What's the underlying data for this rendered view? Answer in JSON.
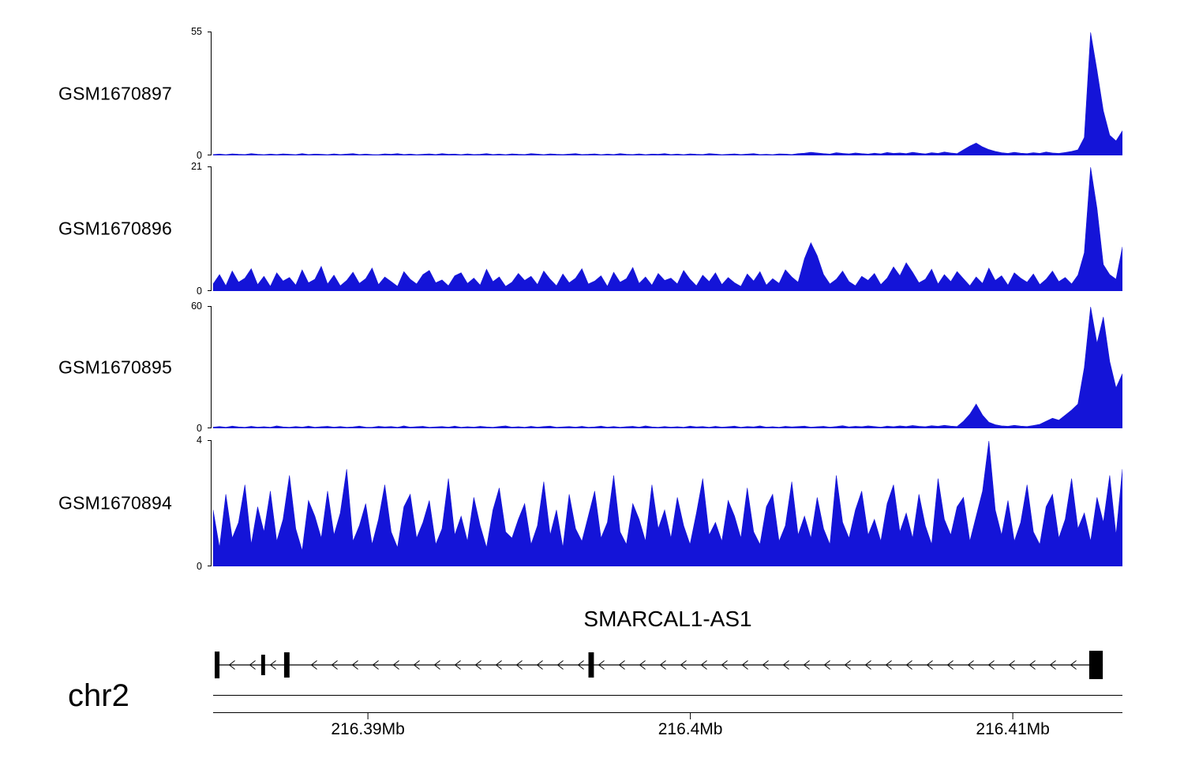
{
  "chart_data": {
    "type": "area",
    "kind": "genome-coverage-tracks",
    "title": "",
    "region": {
      "chrom": "chr2",
      "start_mb": 216.3852,
      "end_mb": 216.4134,
      "unit": "Mb"
    },
    "axis": {
      "chrom_label": "chr2",
      "ticks_mb": [
        216.39,
        216.4,
        216.41
      ],
      "tick_labels": [
        "216.39Mb",
        "216.4Mb",
        "216.41Mb"
      ]
    },
    "gene": {
      "name": "SMARCAL1-AS1",
      "strand": "-",
      "line_start_mb": 216.38525,
      "line_end_mb": 216.41279,
      "exons_mb": [
        [
          216.38525,
          216.3854
        ],
        [
          216.38669,
          216.38681
        ],
        [
          216.3874,
          216.38757
        ],
        [
          216.39684,
          216.39701
        ],
        [
          216.41237,
          216.41279
        ]
      ]
    },
    "tracks": [
      {
        "name": "GSM1670897",
        "ymin": 0,
        "ymax": 55,
        "color": "#1414d8",
        "values": [
          0.4,
          0.6,
          0.3,
          0.7,
          0.5,
          0.4,
          0.8,
          0.5,
          0.3,
          0.6,
          0.4,
          0.7,
          0.5,
          0.3,
          0.8,
          0.4,
          0.6,
          0.5,
          0.3,
          0.7,
          0.4,
          0.6,
          0.8,
          0.4,
          0.6,
          0.4,
          0.3,
          0.7,
          0.5,
          0.8,
          0.4,
          0.6,
          0.3,
          0.5,
          0.7,
          0.4,
          0.8,
          0.5,
          0.6,
          0.3,
          0.7,
          0.4,
          0.5,
          0.8,
          0.4,
          0.6,
          0.3,
          0.7,
          0.5,
          0.4,
          0.8,
          0.6,
          0.3,
          0.7,
          0.5,
          0.4,
          0.6,
          0.8,
          0.4,
          0.5,
          0.7,
          0.3,
          0.6,
          0.4,
          0.8,
          0.5,
          0.4,
          0.7,
          0.3,
          0.6,
          0.5,
          0.8,
          0.4,
          0.6,
          0.3,
          0.7,
          0.5,
          0.4,
          0.8,
          0.6,
          0.3,
          0.5,
          0.7,
          0.4,
          0.6,
          0.8,
          0.4,
          0.5,
          0.3,
          0.7,
          0.6,
          0.4,
          0.8,
          1.0,
          1.4,
          1.1,
          0.8,
          0.6,
          1.2,
          0.9,
          0.7,
          1.1,
          0.8,
          0.6,
          1.0,
          0.7,
          1.3,
          0.9,
          1.1,
          0.8,
          1.4,
          1.0,
          0.7,
          1.2,
          0.9,
          1.5,
          1.1,
          0.8,
          2.5,
          4.2,
          5.5,
          3.8,
          2.6,
          1.8,
          1.2,
          0.9,
          1.4,
          1.0,
          0.8,
          1.2,
          0.9,
          1.5,
          1.1,
          0.9,
          1.3,
          1.8,
          2.5,
          8.0,
          55,
          38,
          20,
          9.0,
          6.5,
          11
        ]
      },
      {
        "name": "GSM1670896",
        "ymin": 0,
        "ymax": 21,
        "color": "#1414d8",
        "values": [
          1.2,
          2.8,
          0.9,
          3.4,
          1.5,
          2.2,
          3.8,
          1.1,
          2.5,
          0.8,
          3.1,
          1.7,
          2.3,
          1.0,
          3.6,
          1.4,
          2.0,
          4.2,
          1.2,
          2.7,
          0.9,
          1.8,
          3.2,
          1.3,
          2.1,
          3.9,
          1.1,
          2.4,
          1.6,
          0.8,
          3.3,
          2.0,
          1.2,
          2.8,
          3.5,
          1.4,
          1.9,
          0.9,
          2.6,
          3.1,
          1.3,
          2.2,
          1.0,
          3.7,
          1.6,
          2.4,
          0.8,
          1.5,
          3.0,
          1.8,
          2.5,
          1.1,
          3.4,
          2.0,
          0.9,
          2.9,
          1.4,
          2.2,
          3.8,
          1.2,
          1.7,
          2.6,
          0.8,
          3.2,
          1.5,
          2.1,
          4.0,
          1.3,
          2.4,
          1.0,
          3.0,
          1.8,
          2.2,
          1.2,
          3.5,
          2.0,
          0.9,
          2.7,
          1.6,
          3.1,
          1.1,
          2.3,
          1.4,
          0.8,
          2.9,
          1.7,
          3.3,
          1.0,
          2.1,
          1.3,
          3.6,
          2.4,
          1.5,
          5.5,
          8.2,
          6.0,
          2.8,
          1.2,
          2.0,
          3.4,
          1.6,
          0.9,
          2.5,
          1.8,
          3.0,
          1.1,
          2.2,
          4.1,
          2.6,
          4.8,
          3.2,
          1.4,
          2.0,
          3.7,
          1.2,
          2.8,
          1.6,
          3.3,
          2.1,
          0.9,
          2.4,
          1.3,
          3.9,
          1.8,
          2.6,
          1.0,
          3.1,
          2.2,
          1.5,
          2.9,
          1.1,
          2.0,
          3.4,
          1.6,
          2.3,
          1.2,
          2.7,
          6.5,
          21,
          14,
          4.5,
          2.8,
          2.0,
          7.5
        ]
      },
      {
        "name": "GSM1670895",
        "ymin": 0,
        "ymax": 60,
        "color": "#1414d8",
        "values": [
          0.6,
          0.9,
          0.5,
          1.1,
          0.7,
          0.5,
          1.0,
          0.6,
          0.8,
          0.5,
          1.2,
          0.7,
          0.5,
          0.9,
          0.6,
          1.1,
          0.5,
          0.8,
          1.0,
          0.6,
          0.9,
          0.5,
          0.7,
          1.1,
          0.6,
          0.5,
          1.0,
          0.7,
          0.9,
          0.5,
          1.2,
          0.6,
          0.8,
          1.0,
          0.5,
          0.7,
          0.9,
          0.6,
          1.1,
          0.5,
          0.8,
          0.6,
          1.0,
          0.7,
          0.5,
          0.9,
          1.2,
          0.6,
          0.8,
          0.5,
          1.0,
          0.6,
          0.9,
          1.1,
          0.5,
          0.7,
          0.9,
          0.6,
          1.0,
          0.5,
          0.7,
          1.1,
          0.6,
          0.9,
          0.5,
          0.8,
          1.0,
          0.6,
          1.2,
          0.7,
          0.5,
          0.9,
          0.6,
          0.8,
          0.5,
          1.1,
          0.7,
          0.9,
          0.5,
          1.0,
          0.6,
          0.8,
          1.1,
          0.5,
          0.9,
          0.7,
          1.2,
          0.6,
          0.8,
          0.5,
          1.0,
          0.7,
          0.9,
          1.1,
          0.6,
          0.8,
          1.0,
          0.6,
          0.9,
          1.3,
          0.7,
          1.0,
          0.8,
          1.2,
          0.9,
          0.6,
          1.1,
          0.8,
          1.2,
          0.9,
          1.4,
          1.0,
          0.8,
          1.3,
          1.0,
          1.5,
          1.1,
          0.9,
          3.5,
          7.0,
          12,
          6.5,
          3.0,
          1.8,
          1.2,
          1.0,
          1.5,
          1.1,
          0.9,
          1.4,
          2.0,
          3.5,
          5.0,
          4.0,
          6.5,
          9.0,
          12,
          30,
          60,
          42,
          55,
          33,
          20,
          27
        ]
      },
      {
        "name": "GSM1670894",
        "ymin": 0,
        "ymax": 4,
        "color": "#1414d8",
        "values": [
          1.8,
          0.6,
          2.3,
          0.9,
          1.4,
          2.6,
          0.7,
          1.9,
          1.1,
          2.4,
          0.8,
          1.5,
          2.9,
          1.2,
          0.5,
          2.1,
          1.6,
          0.9,
          2.4,
          1.0,
          1.7,
          3.1,
          0.8,
          1.3,
          2.0,
          0.7,
          1.5,
          2.6,
          1.1,
          0.6,
          1.9,
          2.3,
          0.9,
          1.4,
          2.1,
          0.7,
          1.2,
          2.8,
          1.0,
          1.6,
          0.8,
          2.2,
          1.3,
          0.6,
          1.8,
          2.5,
          1.1,
          0.9,
          1.5,
          2.0,
          0.7,
          1.3,
          2.7,
          1.0,
          1.8,
          0.6,
          2.3,
          1.2,
          0.8,
          1.6,
          2.4,
          0.9,
          1.4,
          2.9,
          1.1,
          0.7,
          2.0,
          1.5,
          0.8,
          2.6,
          1.2,
          1.8,
          0.9,
          2.2,
          1.3,
          0.7,
          1.7,
          2.8,
          1.0,
          1.4,
          0.8,
          2.1,
          1.6,
          0.9,
          2.5,
          1.1,
          0.7,
          1.9,
          2.3,
          0.8,
          1.3,
          2.7,
          1.0,
          1.6,
          0.9,
          2.2,
          1.2,
          0.7,
          2.9,
          1.4,
          0.9,
          1.8,
          2.4,
          1.0,
          1.5,
          0.8,
          2.0,
          2.6,
          1.1,
          1.7,
          0.9,
          2.3,
          1.3,
          0.7,
          2.8,
          1.5,
          1.0,
          1.9,
          2.2,
          0.8,
          1.6,
          2.4,
          4.0,
          1.8,
          1.0,
          2.1,
          0.8,
          1.4,
          2.6,
          1.1,
          0.7,
          1.9,
          2.3,
          0.9,
          1.5,
          2.8,
          1.2,
          1.7,
          0.8,
          2.2,
          1.4,
          2.9,
          1.0,
          3.1
        ]
      }
    ]
  }
}
